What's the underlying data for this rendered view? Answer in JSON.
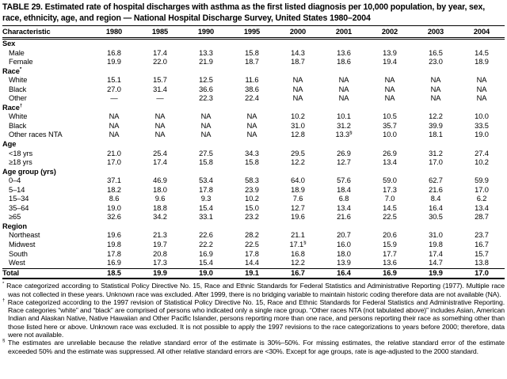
{
  "title": "TABLE 29. Estimated rate of hospital discharges with asthma as the first listed diagnosis per 10,000 population, by year, sex, race, ethnicity, age, and region — National Hospital Discharge Survey, United States 1980–2004",
  "table": {
    "columns": [
      "Characteristic",
      "1980",
      "1985",
      "1990",
      "1995",
      "2000",
      "2001",
      "2002",
      "2003",
      "2004"
    ],
    "rows": [
      {
        "label": "Sex",
        "type": "section",
        "values": []
      },
      {
        "label": "Male",
        "type": "data",
        "values": [
          "16.8",
          "17.4",
          "13.3",
          "15.8",
          "14.3",
          "13.6",
          "13.9",
          "16.5",
          "14.5"
        ]
      },
      {
        "label": "Female",
        "type": "data",
        "values": [
          "19.9",
          "22.0",
          "21.9",
          "18.7",
          "18.7",
          "18.6",
          "19.4",
          "23.0",
          "18.9"
        ]
      },
      {
        "label": "Race*",
        "type": "section",
        "values": []
      },
      {
        "label": "White",
        "type": "data",
        "values": [
          "15.1",
          "15.7",
          "12.5",
          "11.6",
          "NA",
          "NA",
          "NA",
          "NA",
          "NA"
        ]
      },
      {
        "label": "Black",
        "type": "data",
        "values": [
          "27.0",
          "31.4",
          "36.6",
          "38.6",
          "NA",
          "NA",
          "NA",
          "NA",
          "NA"
        ]
      },
      {
        "label": "Other",
        "type": "data",
        "values": [
          "—",
          "—",
          "22.3",
          "22.4",
          "NA",
          "NA",
          "NA",
          "NA",
          "NA"
        ]
      },
      {
        "label": "Race†",
        "type": "section",
        "values": []
      },
      {
        "label": "White",
        "type": "data",
        "values": [
          "NA",
          "NA",
          "NA",
          "NA",
          "10.2",
          "10.1",
          "10.5",
          "12.2",
          "10.0"
        ]
      },
      {
        "label": "Black",
        "type": "data",
        "values": [
          "NA",
          "NA",
          "NA",
          "NA",
          "31.0",
          "31.2",
          "35.7",
          "39.9",
          "33.5"
        ]
      },
      {
        "label": "Other races NTA",
        "type": "data",
        "values": [
          "NA",
          "NA",
          "NA",
          "NA",
          "12.8",
          "13.3§",
          "10.0",
          "18.1",
          "19.0"
        ]
      },
      {
        "label": "Age",
        "type": "section",
        "values": []
      },
      {
        "label": "<18 yrs",
        "type": "data",
        "values": [
          "21.0",
          "25.4",
          "27.5",
          "34.3",
          "29.5",
          "26.9",
          "26.9",
          "31.2",
          "27.4"
        ]
      },
      {
        "label": "≥18 yrs",
        "type": "data",
        "values": [
          "17.0",
          "17.4",
          "15.8",
          "15.8",
          "12.2",
          "12.7",
          "13.4",
          "17.0",
          "10.2"
        ]
      },
      {
        "label": "Age group (yrs)",
        "type": "section",
        "values": []
      },
      {
        "label": "0–4",
        "type": "data",
        "values": [
          "37.1",
          "46.9",
          "53.4",
          "58.3",
          "64.0",
          "57.6",
          "59.0",
          "62.7",
          "59.9"
        ]
      },
      {
        "label": "5–14",
        "type": "data",
        "values": [
          "18.2",
          "18.0",
          "17.8",
          "23.9",
          "18.9",
          "18.4",
          "17.3",
          "21.6",
          "17.0"
        ]
      },
      {
        "label": "15–34",
        "type": "data",
        "values": [
          "8.6",
          "9.6",
          "9.3",
          "10.2",
          "7.6",
          "6.8",
          "7.0",
          "8.4",
          "6.2"
        ]
      },
      {
        "label": "35–64",
        "type": "data",
        "values": [
          "19.0",
          "18.8",
          "15.4",
          "15.0",
          "12.7",
          "13.4",
          "14.5",
          "16.4",
          "13.4"
        ]
      },
      {
        "label": "≥65",
        "type": "data",
        "values": [
          "32.6",
          "34.2",
          "33.1",
          "23.2",
          "19.6",
          "21.6",
          "22.5",
          "30.5",
          "28.7"
        ]
      },
      {
        "label": "Region",
        "type": "section",
        "values": []
      },
      {
        "label": "Northeast",
        "type": "data",
        "values": [
          "19.6",
          "21.3",
          "22.6",
          "28.2",
          "21.1",
          "20.7",
          "20.6",
          "31.0",
          "23.7"
        ]
      },
      {
        "label": "Midwest",
        "type": "data",
        "values": [
          "19.8",
          "19.7",
          "22.2",
          "22.5",
          "17.1§",
          "16.0",
          "15.9",
          "19.8",
          "16.7"
        ]
      },
      {
        "label": "South",
        "type": "data",
        "values": [
          "17.8",
          "20.8",
          "16.9",
          "17.8",
          "16.8",
          "18.0",
          "17.7",
          "17.4",
          "15.7"
        ]
      },
      {
        "label": "West",
        "type": "data",
        "values": [
          "16.9",
          "17.3",
          "15.4",
          "14.4",
          "12.2",
          "13.9",
          "13.6",
          "14.7",
          "13.8"
        ]
      },
      {
        "label": "Total",
        "type": "total",
        "values": [
          "18.5",
          "19.9",
          "19.0",
          "19.1",
          "16.7",
          "16.4",
          "16.9",
          "19.9",
          "17.0"
        ]
      }
    ]
  },
  "footnotes": [
    {
      "symbol": "*",
      "text": "Race categorized according to Statistical Policy Directive No. 15, Race and Ethnic Standards for Federal Statistics and Administrative Reporting (1977). Multiple race was not collected in these years. Unknown race was excluded. After 1999, there is no bridging variable to maintain historic coding therefore data are not available (NA)."
    },
    {
      "symbol": "†",
      "text": "Race categorized according to the 1997 revision of Statistical Policy Directive No. 15, Race and Ethnic Standards for Federal Statistics and Administrative Reporting. Race categories “white” and “black” are comprised of persons who indicated only a single race group. “Other races NTA (not tabulated above)” includes Asian, American Indian and Alaskan Native, Native Hawaiian and Other Pacific Islander, persons reporting more than one race, and persons reporting their race as something other than those listed here or above. Unknown race was excluded. It is not possible to apply the 1997 revisions to the race categorizations to years before 2000; therefore, data were not available."
    },
    {
      "symbol": "§",
      "text": "The estimates are unreliable because the relative standard error of the estimate is 30%–50%. For missing estimates, the relative standard error of the estimate exceeded 50% and the estimate was suppressed. All other relative standard errors are <30%. Except for age groups, rate is age-adjusted to the 2000 standard."
    }
  ]
}
